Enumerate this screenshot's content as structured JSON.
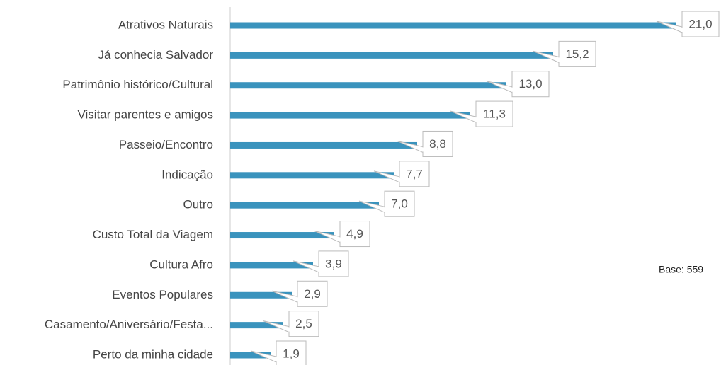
{
  "chart_data": {
    "type": "bar",
    "orientation": "horizontal",
    "categories": [
      "Atrativos Naturais",
      "Já conhecia Salvador",
      "Patrimônio histórico/Cultural",
      "Visitar parentes e amigos",
      "Passeio/Encontro",
      "Indicação",
      "Outro",
      "Custo Total da Viagem",
      "Cultura Afro",
      "Eventos Populares",
      "Casamento/Aniversário/Festa...",
      "Perto da minha cidade"
    ],
    "values": [
      21.0,
      15.2,
      13.0,
      11.3,
      8.8,
      7.7,
      7.0,
      4.9,
      3.9,
      2.9,
      2.5,
      1.9
    ],
    "value_labels": [
      "21,0",
      "15,2",
      "13,0",
      "11,3",
      "8,8",
      "7,7",
      "7,0",
      "4,9",
      "3,9",
      "2,9",
      "2,5",
      "1,9"
    ],
    "color": "#3a93bd",
    "annotation": "Base: 559"
  }
}
